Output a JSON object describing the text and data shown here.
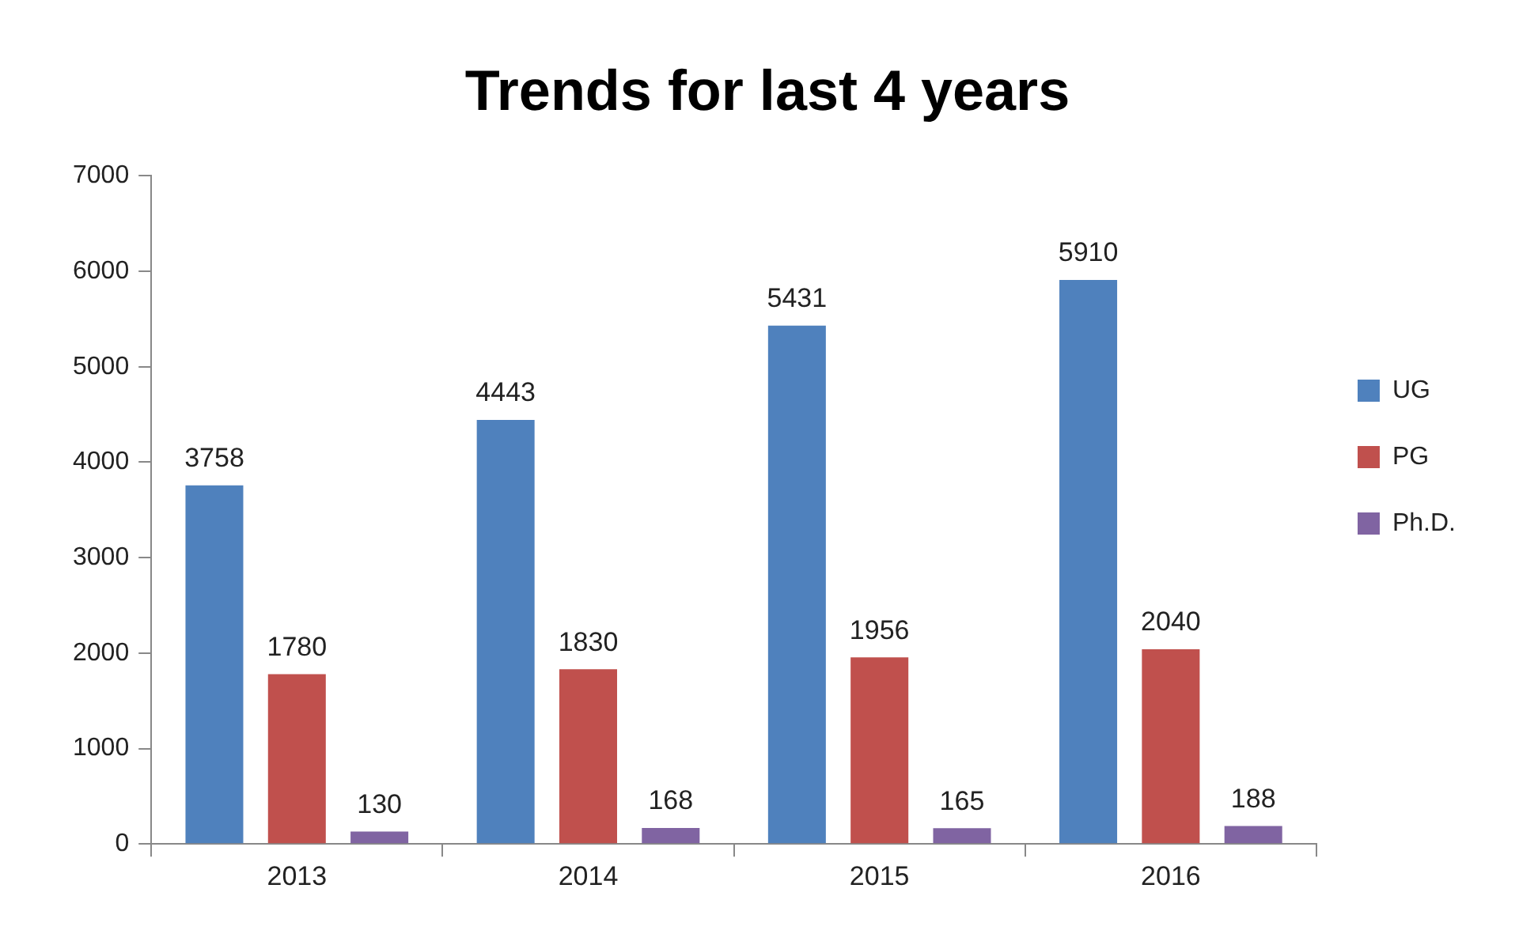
{
  "chart_data": {
    "type": "bar",
    "title": "Trends for last 4 years",
    "categories": [
      "2013",
      "2014",
      "2015",
      "2016"
    ],
    "series": [
      {
        "name": "UG",
        "color": "#4f81bd",
        "values": [
          3758,
          4443,
          5431,
          5910
        ]
      },
      {
        "name": "PG",
        "color": "#c0504d",
        "values": [
          1780,
          1830,
          1956,
          2040
        ]
      },
      {
        "name": "Ph.D.",
        "color": "#8064a2",
        "values": [
          130,
          168,
          165,
          188
        ]
      }
    ],
    "ylim": [
      0,
      7000
    ],
    "yticks": [
      0,
      1000,
      2000,
      3000,
      4000,
      5000,
      6000,
      7000
    ],
    "grid": false,
    "legend": "right",
    "data_labels": true
  }
}
